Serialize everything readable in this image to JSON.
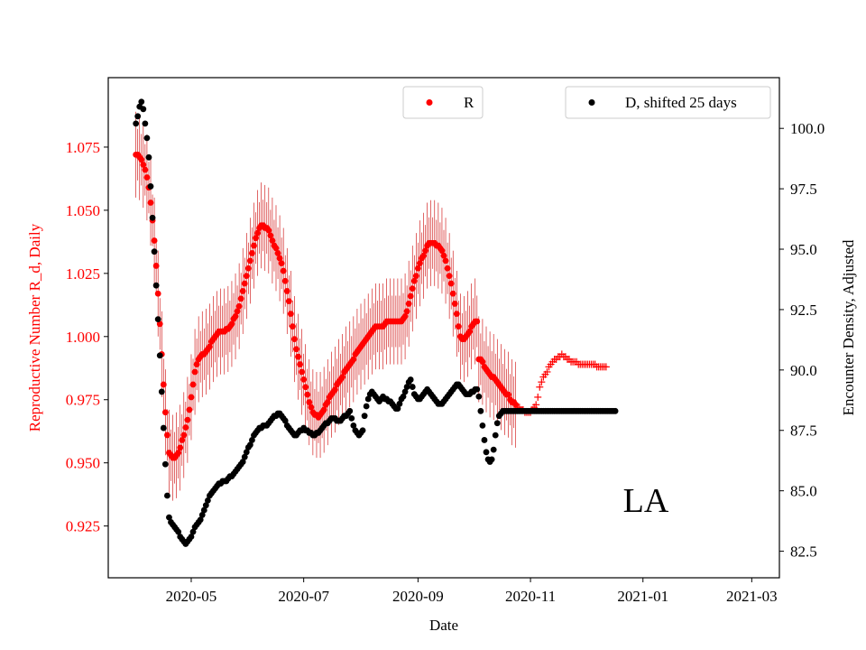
{
  "chart_data": {
    "type": "scatter",
    "annotation": "LA",
    "xlabel": "Date",
    "x_ticks": [
      "2020-05",
      "2020-07",
      "2020-09",
      "2020-11",
      "2021-01",
      "2021-03"
    ],
    "x_range": [
      "2020-03-17",
      "2021-03-16"
    ],
    "left_axis": {
      "label": "Reproductive Number R_d, Daily",
      "color": "#ff0000",
      "ylim": [
        0.9045,
        1.1025
      ],
      "ticks": [
        "0.925",
        "0.950",
        "0.975",
        "1.000",
        "1.025",
        "1.050",
        "1.075"
      ]
    },
    "right_axis": {
      "label": "Encounter Density, Adjusted",
      "color": "#000000",
      "ylim": [
        81.4,
        102.1
      ],
      "ticks": [
        "82.5",
        "85.0",
        "87.5",
        "90.0",
        "92.5",
        "95.0",
        "97.5",
        "100.0"
      ]
    },
    "legends": {
      "r_label": "R",
      "d_label": "D, shifted 25 days"
    },
    "series": [
      {
        "name": "R",
        "axis": "left",
        "color": "#ff0000",
        "x_start": "2020-04-01",
        "x_step_days": 1,
        "error_until_index": 206,
        "error_band": 0.017,
        "values": [
          1.072,
          1.072,
          1.071,
          1.07,
          1.068,
          1.066,
          1.063,
          1.059,
          1.053,
          1.046,
          1.038,
          1.028,
          1.017,
          1.005,
          0.993,
          0.981,
          0.97,
          0.961,
          0.954,
          0.953,
          0.952,
          0.952,
          0.953,
          0.954,
          0.956,
          0.959,
          0.961,
          0.964,
          0.967,
          0.971,
          0.976,
          0.981,
          0.986,
          0.989,
          0.991,
          0.992,
          0.993,
          0.993,
          0.994,
          0.995,
          0.996,
          0.998,
          0.999,
          1.0,
          1.001,
          1.002,
          1.002,
          1.002,
          1.002,
          1.003,
          1.003,
          1.004,
          1.005,
          1.007,
          1.008,
          1.01,
          1.012,
          1.015,
          1.018,
          1.021,
          1.024,
          1.027,
          1.03,
          1.033,
          1.036,
          1.039,
          1.041,
          1.043,
          1.044,
          1.044,
          1.043,
          1.043,
          1.042,
          1.04,
          1.038,
          1.036,
          1.035,
          1.033,
          1.031,
          1.029,
          1.026,
          1.022,
          1.018,
          1.014,
          1.009,
          1.004,
          0.999,
          0.995,
          0.992,
          0.989,
          0.986,
          0.983,
          0.98,
          0.977,
          0.974,
          0.972,
          0.97,
          0.969,
          0.969,
          0.968,
          0.969,
          0.97,
          0.971,
          0.973,
          0.974,
          0.976,
          0.977,
          0.978,
          0.979,
          0.981,
          0.982,
          0.983,
          0.984,
          0.986,
          0.987,
          0.988,
          0.989,
          0.99,
          0.991,
          0.993,
          0.994,
          0.995,
          0.996,
          0.997,
          0.998,
          0.999,
          1.0,
          1.001,
          1.002,
          1.003,
          1.004,
          1.004,
          1.004,
          1.004,
          1.004,
          1.005,
          1.006,
          1.006,
          1.006,
          1.006,
          1.006,
          1.006,
          1.006,
          1.006,
          1.006,
          1.007,
          1.008,
          1.01,
          1.013,
          1.016,
          1.019,
          1.022,
          1.024,
          1.027,
          1.029,
          1.031,
          1.032,
          1.034,
          1.036,
          1.037,
          1.037,
          1.037,
          1.037,
          1.036,
          1.036,
          1.035,
          1.034,
          1.032,
          1.03,
          1.027,
          1.024,
          1.021,
          1.017,
          1.013,
          1.009,
          1.004,
          1.0,
          0.999,
          0.999,
          1.0,
          1.001,
          1.002,
          1.004,
          1.005,
          1.006,
          1.006,
          0.991,
          0.991,
          0.99,
          0.988,
          0.987,
          0.986,
          0.985,
          0.984,
          0.984,
          0.983,
          0.982,
          0.981,
          0.98,
          0.979,
          0.978,
          0.977,
          0.977,
          0.975,
          0.974,
          0.974,
          0.973,
          0.972,
          0.972,
          0.971,
          0.971,
          0.97,
          0.97,
          0.97,
          0.97,
          0.971,
          0.972,
          0.973,
          0.976,
          0.98,
          0.982,
          0.984,
          0.985,
          0.986,
          0.988,
          0.989,
          0.99,
          0.991,
          0.991,
          0.992,
          0.992,
          0.993,
          0.992,
          0.992,
          0.991,
          0.991,
          0.99,
          0.99,
          0.99,
          0.99,
          0.989,
          0.989,
          0.989,
          0.989,
          0.989,
          0.989,
          0.989,
          0.989,
          0.989,
          0.989,
          0.988,
          0.988,
          0.988,
          0.988,
          0.988,
          0.988
        ]
      },
      {
        "name": "D, shifted 25 days",
        "axis": "right",
        "color": "#000000",
        "x_start": "2020-04-01",
        "x_step_days": 1,
        "values": [
          100.2,
          100.5,
          100.9,
          101.1,
          100.8,
          100.2,
          99.6,
          98.8,
          97.6,
          96.3,
          94.9,
          93.5,
          92.1,
          90.6,
          89.1,
          87.6,
          86.1,
          84.8,
          83.9,
          83.7,
          83.6,
          83.5,
          83.4,
          83.3,
          83.1,
          83.0,
          82.9,
          82.8,
          82.9,
          83.0,
          83.1,
          83.3,
          83.5,
          83.6,
          83.7,
          83.8,
          84.0,
          84.2,
          84.4,
          84.6,
          84.8,
          84.9,
          85.0,
          85.1,
          85.2,
          85.3,
          85.3,
          85.4,
          85.4,
          85.4,
          85.5,
          85.6,
          85.6,
          85.7,
          85.8,
          85.9,
          86.0,
          86.1,
          86.2,
          86.4,
          86.6,
          86.8,
          86.9,
          87.1,
          87.3,
          87.4,
          87.5,
          87.6,
          87.6,
          87.7,
          87.7,
          87.7,
          87.8,
          87.9,
          88.0,
          88.1,
          88.1,
          88.2,
          88.2,
          88.1,
          88.0,
          87.9,
          87.7,
          87.6,
          87.5,
          87.4,
          87.3,
          87.3,
          87.4,
          87.5,
          87.5,
          87.6,
          87.5,
          87.5,
          87.4,
          87.4,
          87.3,
          87.3,
          87.4,
          87.4,
          87.5,
          87.6,
          87.7,
          87.8,
          87.8,
          87.9,
          88.0,
          88.0,
          88.0,
          87.9,
          87.9,
          87.9,
          88.0,
          88.1,
          88.1,
          88.2,
          88.3,
          88.0,
          87.7,
          87.5,
          87.4,
          87.3,
          87.4,
          87.5,
          88.1,
          88.5,
          88.8,
          89.0,
          89.1,
          89.0,
          88.9,
          88.8,
          88.7,
          88.8,
          88.9,
          88.8,
          88.8,
          88.7,
          88.7,
          88.6,
          88.5,
          88.4,
          88.4,
          88.6,
          88.8,
          88.9,
          89.1,
          89.3,
          89.5,
          89.6,
          89.3,
          89.0,
          88.9,
          88.8,
          88.8,
          88.9,
          89.0,
          89.1,
          89.2,
          89.1,
          89.0,
          88.9,
          88.8,
          88.7,
          88.6,
          88.6,
          88.6,
          88.7,
          88.8,
          88.9,
          89.0,
          89.1,
          89.2,
          89.3,
          89.4,
          89.4,
          89.3,
          89.2,
          89.1,
          89.0,
          89.0,
          89.0,
          89.1,
          89.1,
          89.2,
          89.2,
          88.9,
          88.3,
          87.7,
          87.1,
          86.6,
          86.3,
          86.2,
          86.3,
          86.7,
          87.3,
          87.8,
          88.1,
          88.2,
          88.3,
          88.3,
          88.3,
          88.3,
          88.3,
          88.3,
          88.3,
          88.3,
          88.3,
          88.3,
          88.3,
          88.3,
          88.3,
          88.3,
          88.3,
          88.3,
          88.3,
          88.3,
          88.3,
          88.3,
          88.3,
          88.3,
          88.3,
          88.3,
          88.3,
          88.3,
          88.3,
          88.3,
          88.3,
          88.3,
          88.3,
          88.3,
          88.3,
          88.3,
          88.3,
          88.3,
          88.3,
          88.3,
          88.3,
          88.3,
          88.3,
          88.3,
          88.3,
          88.3,
          88.3,
          88.3,
          88.3,
          88.3,
          88.3,
          88.3,
          88.3,
          88.3,
          88.3,
          88.3,
          88.3,
          88.3,
          88.3,
          88.3,
          88.3,
          88.3,
          88.3,
          88.3
        ]
      }
    ]
  }
}
